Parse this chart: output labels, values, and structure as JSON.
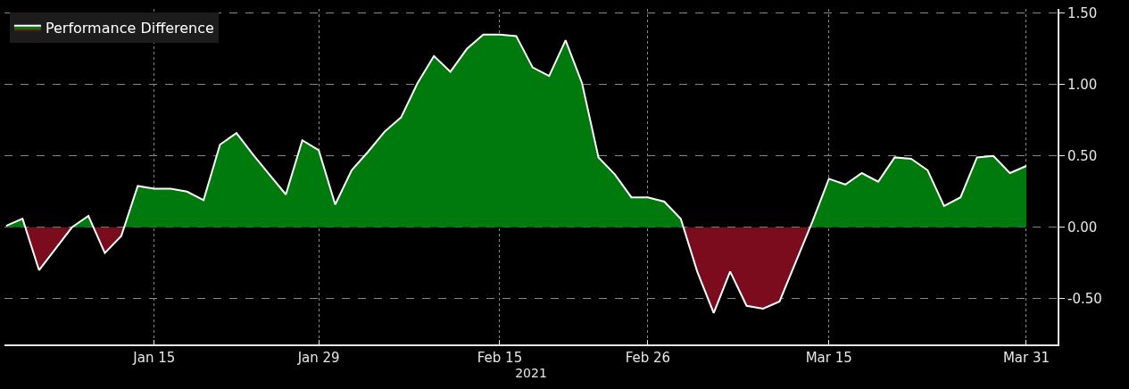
{
  "chart_data": {
    "type": "area",
    "xlabel": "2021",
    "categories": [
      null,
      null,
      null,
      null,
      null,
      null,
      null,
      null,
      null,
      "Jan 15",
      null,
      null,
      null,
      null,
      null,
      null,
      null,
      null,
      null,
      "Jan 29",
      null,
      null,
      null,
      null,
      null,
      null,
      null,
      null,
      null,
      null,
      "Feb 15",
      null,
      null,
      null,
      null,
      null,
      null,
      null,
      null,
      "Feb 26",
      null,
      null,
      null,
      null,
      null,
      null,
      null,
      null,
      null,
      null,
      "Mar 15",
      null,
      null,
      null,
      null,
      null,
      null,
      null,
      null,
      null,
      null,
      null,
      "Mar 31"
    ],
    "series": [
      {
        "name": "Performance Difference",
        "color": "#ffffff",
        "values": [
          0.01,
          0.06,
          -0.3,
          -0.15,
          0.0,
          0.08,
          -0.18,
          -0.06,
          0.29,
          0.27,
          0.27,
          0.25,
          0.19,
          0.58,
          0.66,
          0.51,
          0.37,
          0.23,
          0.61,
          0.54,
          0.16,
          0.4,
          0.53,
          0.67,
          0.77,
          1.01,
          1.2,
          1.09,
          1.25,
          1.35,
          1.35,
          1.34,
          1.12,
          1.06,
          1.31,
          1.01,
          0.49,
          0.37,
          0.21,
          0.21,
          0.18,
          0.06,
          -0.31,
          -0.6,
          -0.31,
          -0.55,
          -0.57,
          -0.52,
          -0.24,
          0.04,
          0.34,
          0.3,
          0.38,
          0.32,
          0.49,
          0.48,
          0.4,
          0.15,
          0.21,
          0.49,
          0.5,
          0.38,
          0.43
        ],
        "colors": [
          "#007a0c",
          "#007a0c",
          "#7a0c1e",
          "#7a0c1e",
          "#007a0c",
          "#007a0c",
          "#7a0c1e",
          "#7a0c1e",
          "#007a0c",
          "#007a0c",
          "#007a0c",
          "#007a0c",
          "#007a0c",
          "#007a0c",
          "#007a0c",
          "#007a0c",
          "#007a0c",
          "#007a0c",
          "#007a0c",
          "#007a0c",
          "#007a0c",
          "#007a0c",
          "#007a0c",
          "#007a0c",
          "#007a0c",
          "#007a0c",
          "#007a0c",
          "#007a0c",
          "#007a0c",
          "#007a0c",
          "#007a0c",
          "#007a0c",
          "#007a0c",
          "#007a0c",
          "#007a0c",
          "#007a0c",
          "#007a0c",
          "#007a0c",
          "#007a0c",
          "#007a0c",
          "#007a0c",
          "#007a0c",
          "#7a0c1e",
          "#7a0c1e",
          "#7a0c1e",
          "#7a0c1e",
          "#7a0c1e",
          "#7a0c1e",
          "#7a0c1e",
          "#007a0c",
          "#007a0c",
          "#007a0c",
          "#007a0c",
          "#007a0c",
          "#007a0c",
          "#007a0c",
          "#007a0c",
          "#007a0c",
          "#007a0c",
          "#007a0c",
          "#007a0c",
          "#007a0c",
          "#007a0c"
        ]
      }
    ],
    "ylim": [
      -0.82,
      1.53
    ],
    "yticks": [
      {
        "value": -0.5,
        "label": "-0.50"
      },
      {
        "value": 0,
        "label": "0.00"
      },
      {
        "value": 0.5,
        "label": "0.50"
      },
      {
        "value": 1.0,
        "label": "1.00"
      },
      {
        "value": 1.5,
        "label": "1.50"
      }
    ],
    "grid": true,
    "legend": "top left",
    "marker": "none",
    "line_style": "solid"
  }
}
